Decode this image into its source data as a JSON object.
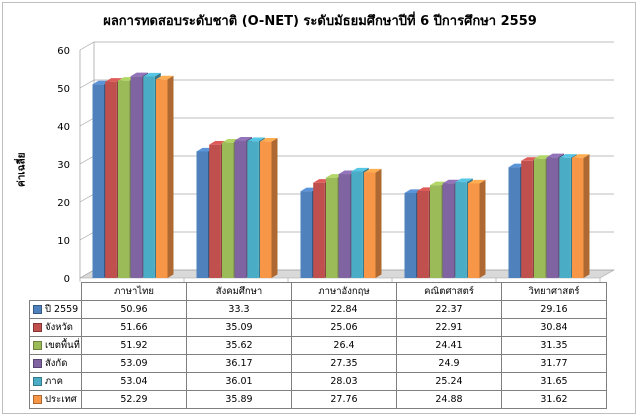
{
  "chart_data": {
    "type": "bar",
    "title": "ผลการทดสอบระดับชาติ (O-NET) ระดับมัธยมศึกษาปีที่ 6 ปีการศึกษา 2559",
    "ylabel": "ค่าเฉลี่ย",
    "xlabel": "",
    "ylim": [
      0,
      60
    ],
    "yticks": [
      0,
      10,
      20,
      30,
      40,
      50,
      60
    ],
    "grid": true,
    "legend": "data-table",
    "categories": [
      "ภาษาไทย",
      "สังคมศึกษา",
      "ภาษาอังกฤษ",
      "คณิตศาสตร์",
      "วิทยาศาสตร์"
    ],
    "series": [
      {
        "name": "ปี 2559",
        "color": "#4f81bd",
        "values": [
          "50.96",
          "33.3",
          "22.84",
          "22.37",
          "29.16"
        ]
      },
      {
        "name": "จังหวัด",
        "color": "#c0504d",
        "values": [
          "51.66",
          "35.09",
          "25.06",
          "22.91",
          "30.84"
        ]
      },
      {
        "name": "เขตพื้นที่",
        "color": "#9bbb59",
        "values": [
          "51.92",
          "35.62",
          "26.4",
          "24.41",
          "31.35"
        ]
      },
      {
        "name": "สังกัด",
        "color": "#8064a2",
        "values": [
          "53.09",
          "36.17",
          "27.35",
          "24.9",
          "31.77"
        ]
      },
      {
        "name": "ภาค",
        "color": "#4bacc6",
        "values": [
          "53.04",
          "36.01",
          "28.03",
          "25.24",
          "31.65"
        ]
      },
      {
        "name": "ประเทศ",
        "color": "#f79646",
        "values": [
          "52.29",
          "35.89",
          "27.76",
          "24.88",
          "31.62"
        ]
      }
    ]
  }
}
